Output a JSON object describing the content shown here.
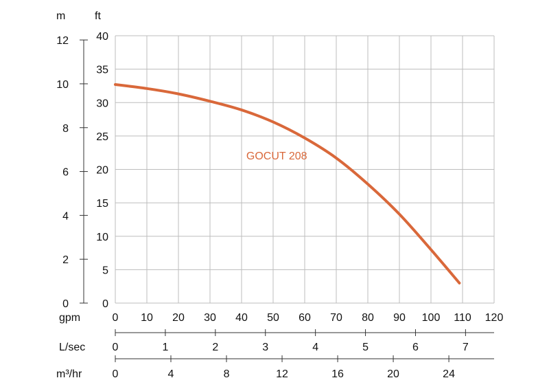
{
  "chart_data": {
    "type": "line",
    "title": "",
    "xlabel": "gpm",
    "ylabel": "ft",
    "x_axis": {
      "unit": "gpm",
      "range": [
        0,
        120
      ],
      "ticks": [
        "0",
        "10",
        "20",
        "30",
        "40",
        "50",
        "60",
        "70",
        "80",
        "90",
        "100",
        "110",
        "120"
      ]
    },
    "y_axis": {
      "unit": "ft",
      "range": [
        0,
        40
      ],
      "ticks": [
        "0",
        "5",
        "10",
        "15",
        "20",
        "25",
        "30",
        "35",
        "40"
      ]
    },
    "secondary_y_axis": {
      "unit": "m",
      "range": [
        0,
        12.192
      ],
      "ticks": [
        "0",
        "2",
        "4",
        "6",
        "8",
        "10",
        "12"
      ]
    },
    "secondary_x_axes": [
      {
        "unit": "L/sec",
        "ticks": [
          "0",
          "1",
          "2",
          "3",
          "4",
          "5",
          "6",
          "7"
        ]
      },
      {
        "unit": "m³/hr",
        "ticks": [
          "0",
          "4",
          "8",
          "12",
          "16",
          "20",
          "24"
        ]
      }
    ],
    "grid": true,
    "colors": {
      "series": "#d9683a",
      "label": "#d9683a",
      "grid": "#bdbdbd",
      "axis": "#333333"
    },
    "series": [
      {
        "name": "GOCUT 208",
        "x": [
          0,
          10,
          20,
          30,
          40,
          50,
          60,
          70,
          80,
          90,
          100,
          109
        ],
        "y": [
          32.7,
          32.1,
          31.3,
          30.2,
          28.9,
          27.1,
          24.7,
          21.7,
          17.8,
          13.3,
          8.0,
          3.0
        ]
      }
    ]
  }
}
